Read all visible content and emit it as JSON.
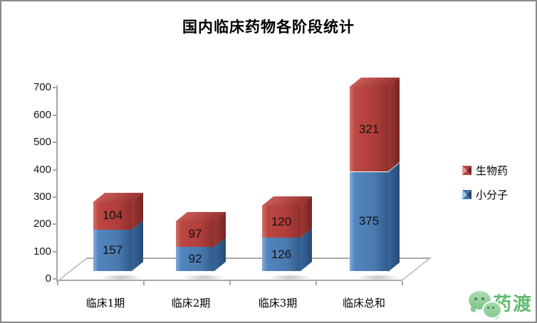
{
  "chart_data": {
    "type": "bar",
    "variant": "3d-stacked-column",
    "title": "国内临床药物各阶段统计",
    "categories": [
      "临床1期",
      "临床2期",
      "临床3期",
      "临床总和"
    ],
    "series": [
      {
        "name": "小分子",
        "color": "#4F81BD",
        "values": [
          157,
          92,
          126,
          375
        ]
      },
      {
        "name": "生物药",
        "color": "#C0504D",
        "values": [
          104,
          97,
          120,
          321
        ]
      }
    ],
    "y_axis": {
      "min": 0,
      "max": 700,
      "step": 100,
      "ticks": [
        0,
        100,
        200,
        300,
        400,
        500,
        600,
        700
      ]
    },
    "data_labels": true,
    "gridlines": false,
    "legend_position": "right",
    "axis_color": "#A6A6A6",
    "label_color": "#000000",
    "background": "#FFFFFF"
  },
  "legend": {
    "items": [
      {
        "label": "生物药",
        "color": "#C0504D"
      },
      {
        "label": "小分子",
        "color": "#4F81BD"
      }
    ]
  },
  "watermark": {
    "text": "药渡",
    "color": "#5FBB72",
    "icon": "wechat-icon"
  }
}
